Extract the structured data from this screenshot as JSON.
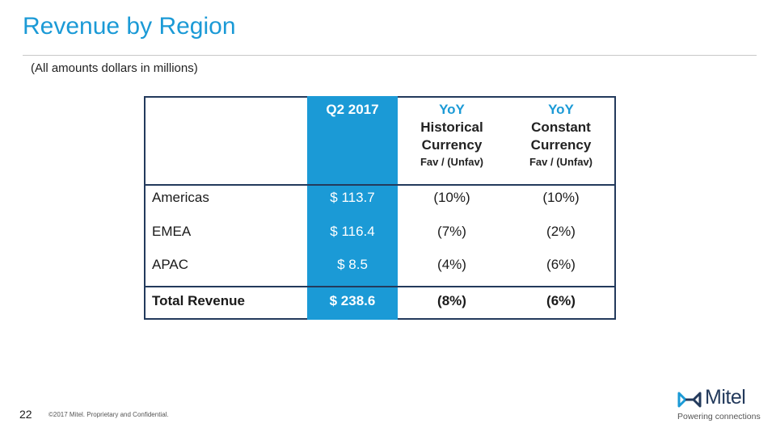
{
  "title": "Revenue by Region",
  "subtitle": "(All amounts dollars in millions)",
  "table": {
    "headers": {
      "q2": "Q2 2017",
      "hist_accent": "YoY",
      "hist_line1": "Historical",
      "hist_line2": "Currency",
      "hist_sub": "Fav / (Unfav)",
      "const_accent": "YoY",
      "const_line1": "Constant",
      "const_line2": "Currency",
      "const_sub": "Fav / (Unfav)"
    },
    "rows": [
      {
        "region": "Americas",
        "q2": "$ 113.7",
        "historical": "(10%)",
        "constant": "(10%)"
      },
      {
        "region": "EMEA",
        "q2": "$ 116.4",
        "historical": "(7%)",
        "constant": "(2%)"
      },
      {
        "region": "APAC",
        "q2": "$ 8.5",
        "historical": "(4%)",
        "constant": "(6%)"
      }
    ],
    "total": {
      "region": "Total Revenue",
      "q2": "$ 238.6",
      "historical": "(8%)",
      "constant": "(6%)"
    }
  },
  "footer": {
    "page_number": "22",
    "copyright": "©2017 Mitel. Proprietary and Confidential."
  },
  "logo": {
    "brand": "Mitel",
    "tagline": "Powering connections"
  },
  "colors": {
    "accent": "#1b9ad6",
    "navy": "#233a5c"
  }
}
